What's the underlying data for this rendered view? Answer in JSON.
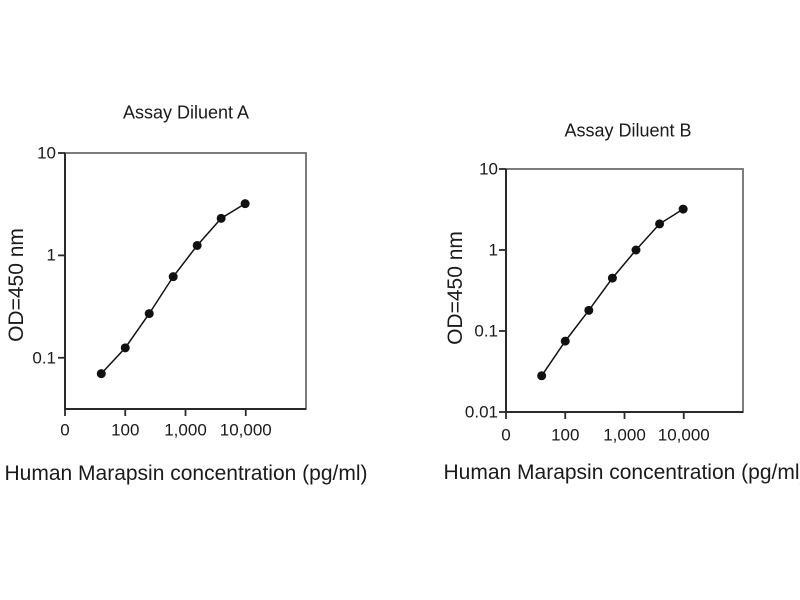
{
  "figure": {
    "background": "#ffffff",
    "colors": {
      "series": "#111111",
      "axis": "#2a2a2a",
      "frame": "#6e6e6e",
      "text": "#1a1a1a"
    }
  },
  "chart_data": [
    {
      "type": "line",
      "title": "Assay Diluent A",
      "xlabel": "Human Marapsin concentration (pg/ml)",
      "ylabel": "OD=450 nm",
      "xscale": "log",
      "yscale": "log",
      "grid": false,
      "legend": "none",
      "marker": "filled-circle",
      "xlim": [
        10,
        100000
      ],
      "ylim": [
        0.0316,
        10
      ],
      "x": [
        40,
        100,
        250,
        625,
        1563,
        3906,
        9766
      ],
      "y": [
        0.07,
        0.125,
        0.27,
        0.62,
        1.25,
        2.3,
        3.2
      ],
      "xticks": [
        {
          "value": 10,
          "label": "0"
        },
        {
          "value": 100,
          "label": "100"
        },
        {
          "value": 1000,
          "label": "1,000"
        },
        {
          "value": 10000,
          "label": "10,000"
        }
      ],
      "yticks": [
        {
          "value": 10,
          "label": "10"
        },
        {
          "value": 1,
          "label": "1"
        },
        {
          "value": 0.1,
          "label": "0.1"
        }
      ]
    },
    {
      "type": "line",
      "title": "Assay Diluent B",
      "xlabel": "Human Marapsin concentration (pg/ml)",
      "ylabel": "OD=450 nm",
      "xscale": "log",
      "yscale": "log",
      "grid": false,
      "legend": "none",
      "marker": "filled-circle",
      "xlim": [
        10,
        100000
      ],
      "ylim": [
        0.01,
        10
      ],
      "x": [
        40,
        100,
        250,
        625,
        1563,
        3906,
        9766
      ],
      "y": [
        0.028,
        0.075,
        0.18,
        0.45,
        1.0,
        2.1,
        3.2
      ],
      "xticks": [
        {
          "value": 10,
          "label": "0"
        },
        {
          "value": 100,
          "label": "100"
        },
        {
          "value": 1000,
          "label": "1,000"
        },
        {
          "value": 10000,
          "label": "10,000"
        }
      ],
      "yticks": [
        {
          "value": 10,
          "label": "10"
        },
        {
          "value": 1,
          "label": "1"
        },
        {
          "value": 0.1,
          "label": "0.1"
        },
        {
          "value": 0.01,
          "label": "0.01"
        }
      ]
    }
  ]
}
